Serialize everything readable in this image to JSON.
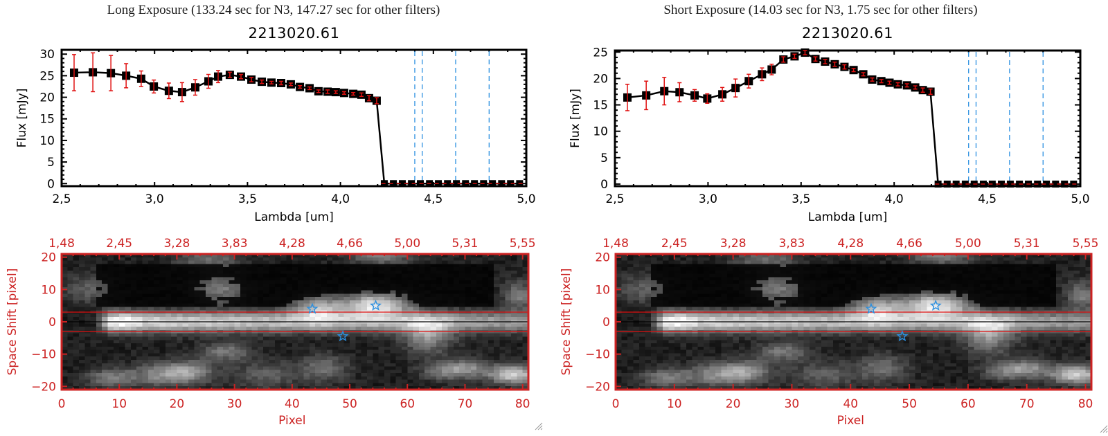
{
  "panels": [
    {
      "id": "long",
      "header": "Long Exposure (133.24 sec for N3, 147.27 sec for other filters)",
      "object_id": "2213020.61"
    },
    {
      "id": "short",
      "header": "Short Exposure (14.03 sec for N3, 1.75 sec for other filters)",
      "object_id": "2213020.61"
    }
  ],
  "chart_data": [
    {
      "type": "line",
      "title": "2213020.61",
      "panel": "Long Exposure",
      "xlabel": "Lambda [um]",
      "ylabel": "Flux [mJy]",
      "xlim": [
        2.5,
        5.0
      ],
      "ylim": [
        -0.6,
        31
      ],
      "xticks": [
        "2.5",
        "3.0",
        "3.5",
        "4.0",
        "4.5",
        "5.0"
      ],
      "yticks": [
        "0",
        "5",
        "10",
        "15",
        "20",
        "25",
        "30"
      ],
      "series": [
        {
          "name": "flux",
          "color": "#000000",
          "marker": "square",
          "x": [
            2.567,
            2.668,
            2.765,
            2.847,
            2.928,
            2.996,
            3.077,
            3.148,
            3.219,
            3.29,
            3.342,
            3.405,
            3.465,
            3.521,
            3.577,
            3.629,
            3.681,
            3.733,
            3.782,
            3.834,
            3.882,
            3.931,
            3.975,
            4.02,
            4.069,
            4.113,
            4.154,
            4.195
          ],
          "y": [
            25.7,
            25.8,
            25.6,
            25.0,
            24.3,
            22.5,
            21.5,
            21.2,
            22.3,
            23.7,
            24.8,
            25.2,
            24.8,
            24.1,
            23.6,
            23.4,
            23.3,
            23.0,
            22.4,
            22.1,
            21.4,
            21.3,
            21.2,
            21.0,
            20.8,
            20.6,
            19.8,
            19.2
          ],
          "yerr": [
            4.2,
            4.5,
            4.1,
            2.8,
            1.8,
            1.5,
            1.8,
            2.2,
            1.8,
            1.6,
            1.4,
            0.6,
            0.5,
            0.5,
            0.4,
            0.3,
            0.4,
            0.3,
            0.3,
            0.3,
            0.3,
            0.4,
            0.3,
            0.3,
            0.3,
            0.4,
            0.6,
            0.7
          ],
          "zero_x": [
            4.236,
            4.285,
            4.333,
            4.382,
            4.43,
            4.479,
            4.527,
            4.576,
            4.624,
            4.673,
            4.721,
            4.77,
            4.818,
            4.867,
            4.915,
            4.964
          ]
        }
      ],
      "vlines": [
        4.4,
        4.44,
        4.62,
        4.8
      ],
      "vline_color": "#2a8fe0",
      "hline": 0,
      "hline_color": "#e01010",
      "errorbar_color": "#e01010"
    },
    {
      "type": "line",
      "title": "2213020.61",
      "panel": "Short Exposure",
      "xlabel": "Lambda [um]",
      "ylabel": "Flux [mJy]",
      "xlim": [
        2.5,
        5.0
      ],
      "ylim": [
        -0.4,
        25.3
      ],
      "xticks": [
        "2.5",
        "3.0",
        "3.5",
        "4.0",
        "4.5",
        "5.0"
      ],
      "yticks": [
        "0",
        "5",
        "10",
        "15",
        "20",
        "25"
      ],
      "series": [
        {
          "name": "flux",
          "color": "#000000",
          "marker": "square",
          "x": [
            2.567,
            2.668,
            2.765,
            2.847,
            2.928,
            2.996,
            3.077,
            3.148,
            3.219,
            3.29,
            3.342,
            3.405,
            3.465,
            3.521,
            3.577,
            3.629,
            3.681,
            3.733,
            3.782,
            3.834,
            3.882,
            3.931,
            3.975,
            4.02,
            4.069,
            4.113,
            4.154,
            4.195
          ],
          "y": [
            16.4,
            16.8,
            17.6,
            17.4,
            16.8,
            16.2,
            17.0,
            18.2,
            19.5,
            20.8,
            21.7,
            23.6,
            24.2,
            24.9,
            23.7,
            23.2,
            22.7,
            22.2,
            21.6,
            20.8,
            19.8,
            19.5,
            19.2,
            18.9,
            18.7,
            18.3,
            17.8,
            17.5
          ],
          "yerr": [
            2.5,
            2.7,
            2.6,
            1.8,
            1.1,
            0.9,
            1.3,
            1.7,
            1.3,
            1.2,
            1.0,
            0.5,
            0.4,
            0.4,
            0.4,
            0.4,
            0.4,
            0.4,
            0.3,
            0.3,
            0.3,
            0.3,
            0.3,
            0.3,
            0.3,
            0.3,
            0.4,
            0.5
          ],
          "zero_x": [
            4.236,
            4.285,
            4.333,
            4.382,
            4.43,
            4.479,
            4.527,
            4.576,
            4.624,
            4.673,
            4.721,
            4.77,
            4.818,
            4.867,
            4.915,
            4.964
          ]
        }
      ],
      "vlines": [
        4.4,
        4.44,
        4.62,
        4.8
      ],
      "vline_color": "#2a8fe0",
      "hline": 0,
      "hline_color": "#e01010",
      "errorbar_color": "#e01010"
    },
    {
      "type": "heatmap",
      "panel": "Long Exposure",
      "xlabel": "Pixel",
      "ylabel": "Space Shift [pixel]",
      "xlim": [
        0,
        81
      ],
      "ylim": [
        -21,
        21
      ],
      "xticks": [
        "0",
        "10",
        "20",
        "30",
        "40",
        "50",
        "60",
        "70",
        "80"
      ],
      "yticks": [
        "-20",
        "-10",
        "0",
        "10",
        "20"
      ],
      "top_ticks": [
        "1.48",
        "2.45",
        "3.28",
        "3.83",
        "4.28",
        "4.66",
        "5.00",
        "5.31",
        "5.55"
      ],
      "axis_color": "#cc2222",
      "aperture_lines": [
        3,
        -3
      ],
      "center_line": 0,
      "stars": [
        {
          "x": 43.5,
          "y": 4.0
        },
        {
          "x": 54.5,
          "y": 5.0
        },
        {
          "x": 48.8,
          "y": -4.5
        }
      ],
      "star_color": "#2a8fe0"
    },
    {
      "type": "heatmap",
      "panel": "Short Exposure",
      "xlabel": "Pixel",
      "ylabel": "Space Shift [pixel]",
      "xlim": [
        0,
        81
      ],
      "ylim": [
        -21,
        21
      ],
      "xticks": [
        "0",
        "10",
        "20",
        "30",
        "40",
        "50",
        "60",
        "70",
        "80"
      ],
      "yticks": [
        "-20",
        "-10",
        "0",
        "10",
        "20"
      ],
      "top_ticks": [
        "1.48",
        "2.45",
        "3.28",
        "3.83",
        "4.28",
        "4.66",
        "5.00",
        "5.31",
        "5.55"
      ],
      "axis_color": "#cc2222",
      "aperture_lines": [
        3,
        -3
      ],
      "center_line": 0,
      "stars": [
        {
          "x": 43.5,
          "y": 4.0
        },
        {
          "x": 54.5,
          "y": 5.0
        },
        {
          "x": 48.8,
          "y": -4.5
        }
      ],
      "star_color": "#2a8fe0"
    }
  ]
}
